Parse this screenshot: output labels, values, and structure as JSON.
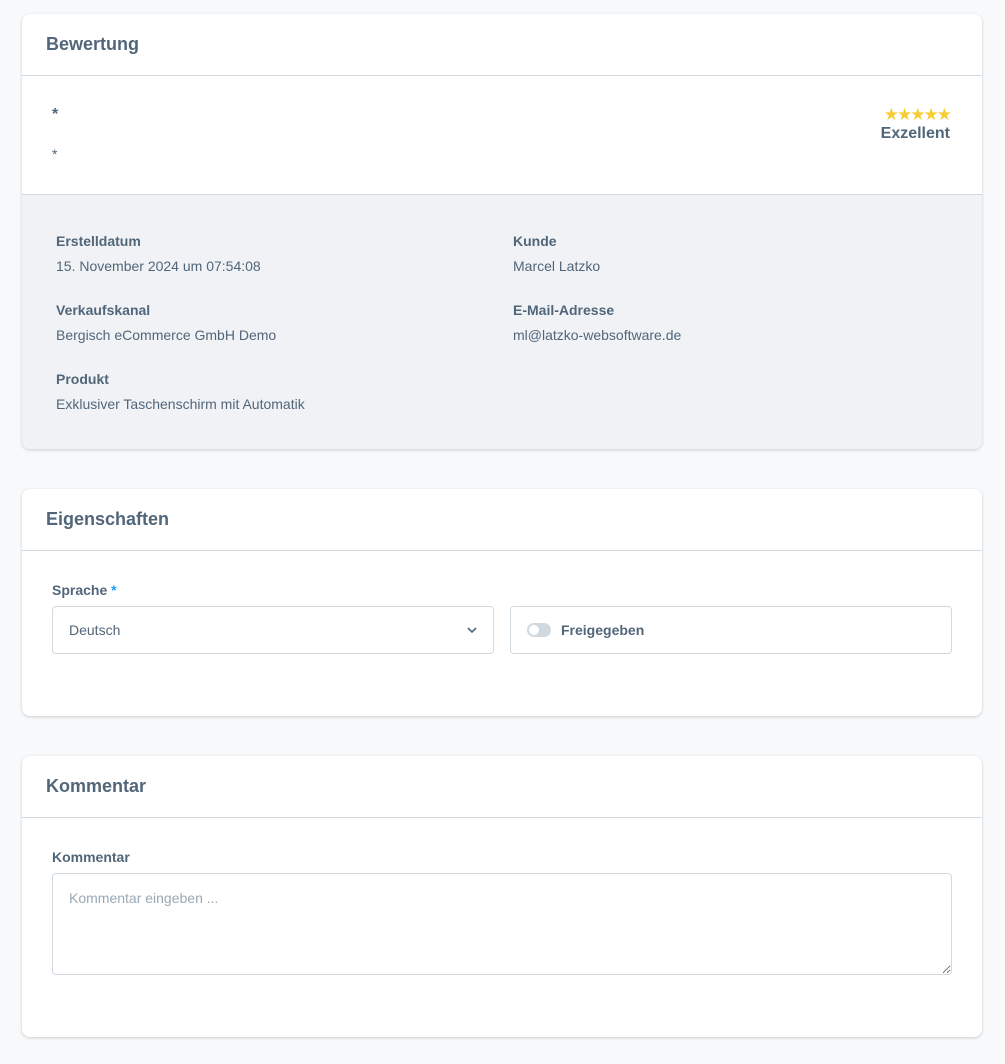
{
  "review": {
    "title": "Bewertung",
    "headline": "*",
    "content": "*",
    "stars_icon": "star-icon",
    "star_color": "#f6cd34",
    "rating_value": 5,
    "rating_max": 5,
    "rating_stars": "★★★★★",
    "rating_label": "Exzellent",
    "meta": {
      "created_label": "Erstelldatum",
      "created_value": "15. November 2024 um 07:54:08",
      "customer_label": "Kunde",
      "customer_value": "Marcel Latzko",
      "channel_label": "Verkaufskanal",
      "channel_value": "Bergisch eCommerce GmbH Demo",
      "email_label": "E-Mail-Adresse",
      "email_value": "ml@latzko-websoftware.de",
      "product_label": "Produkt",
      "product_value": "Exklusiver Taschenschirm mit Automatik"
    }
  },
  "properties": {
    "title": "Eigenschaften",
    "language_label": "Sprache",
    "required_mark": "*",
    "language_value": "Deutsch",
    "approved_label": "Freigegeben",
    "approved": false
  },
  "comment": {
    "title": "Kommentar",
    "label": "Kommentar",
    "placeholder": "Kommentar eingeben ...",
    "value": ""
  }
}
